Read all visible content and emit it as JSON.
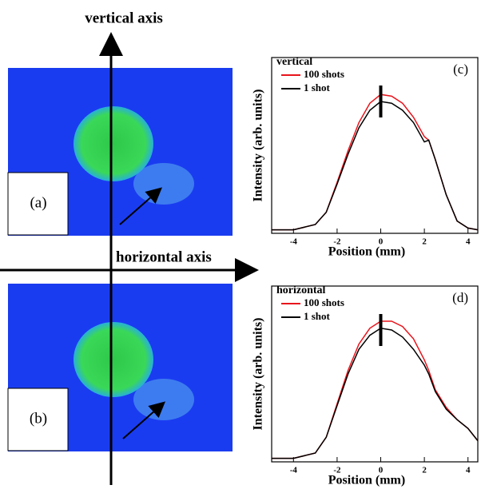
{
  "labels": {
    "vertical_axis": "vertical axis",
    "horizontal_axis": "horizontal axis",
    "panel_a": "(a)",
    "panel_b": "(b)"
  },
  "chart_data": [
    {
      "type": "line",
      "panel": "(c)",
      "legend_title": "vertical",
      "x_label": "Position (mm)",
      "y_label": "Intensity (arb. units)",
      "x": [
        -5,
        -4,
        -3,
        -2.5,
        -2,
        -1.5,
        -1,
        -0.5,
        0,
        0.5,
        1,
        1.5,
        2,
        2.2,
        2.5,
        3,
        3.5,
        4,
        4.45
      ],
      "series": [
        {
          "name": "100 shots",
          "color": "#e8141c",
          "values": [
            0.02,
            0.02,
            0.05,
            0.12,
            0.29,
            0.47,
            0.63,
            0.74,
            0.79,
            0.78,
            0.74,
            0.66,
            0.55,
            0.53,
            0.42,
            0.22,
            0.07,
            0.03,
            0.02
          ]
        },
        {
          "name": "1 shot",
          "color": "#000000",
          "values": [
            0.02,
            0.02,
            0.05,
            0.12,
            0.28,
            0.45,
            0.6,
            0.7,
            0.75,
            0.74,
            0.7,
            0.63,
            0.52,
            0.53,
            0.42,
            0.22,
            0.07,
            0.03,
            0.02
          ]
        }
      ],
      "xlim": [
        -5,
        4.45
      ],
      "xticks": [
        -4,
        -2,
        0,
        2,
        4
      ],
      "ylim": [
        0,
        1
      ]
    },
    {
      "type": "line",
      "panel": "(d)",
      "legend_title": "horizontal",
      "x_label": "Position (mm)",
      "y_label": "Intensity (arb. units)",
      "x": [
        -5,
        -4,
        -3,
        -2.5,
        -2,
        -1.5,
        -1,
        -0.5,
        0,
        0.5,
        1,
        1.5,
        2,
        2.2,
        2.5,
        3,
        3.5,
        4,
        4.45
      ],
      "series": [
        {
          "name": "100 shots",
          "color": "#e8141c",
          "values": [
            0.02,
            0.02,
            0.05,
            0.14,
            0.33,
            0.52,
            0.67,
            0.76,
            0.8,
            0.8,
            0.77,
            0.7,
            0.58,
            0.52,
            0.41,
            0.31,
            0.24,
            0.19,
            0.12
          ]
        },
        {
          "name": "1 shot",
          "color": "#000000",
          "values": [
            0.02,
            0.02,
            0.05,
            0.14,
            0.32,
            0.5,
            0.64,
            0.72,
            0.76,
            0.75,
            0.71,
            0.64,
            0.55,
            0.5,
            0.4,
            0.3,
            0.24,
            0.19,
            0.12
          ]
        }
      ],
      "xlim": [
        -5,
        4.45
      ],
      "xticks": [
        -4,
        -2,
        0,
        2,
        4
      ],
      "ylim": [
        0,
        1
      ]
    }
  ]
}
